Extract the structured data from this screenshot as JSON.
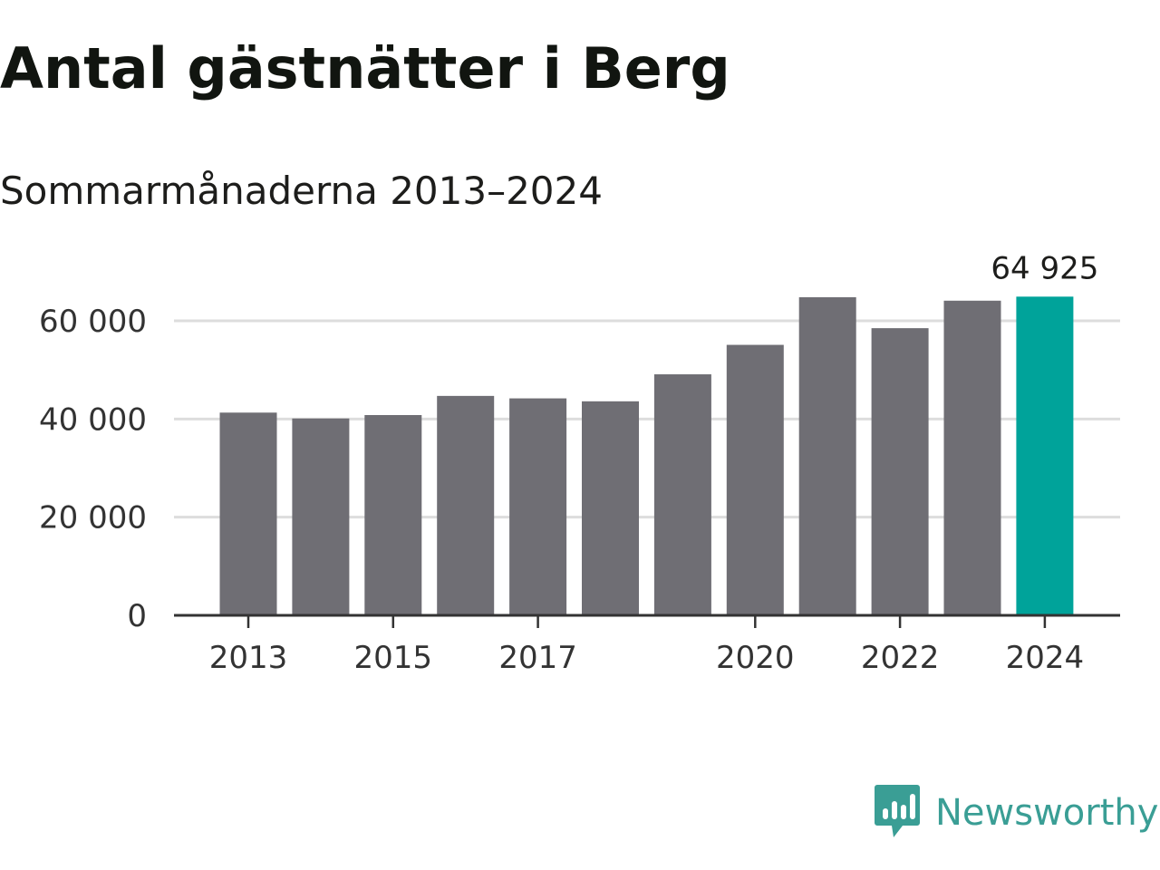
{
  "header": {
    "title": "Antal gästnätter i Berg",
    "subtitle": "Sommarmånaderna 2013–2024"
  },
  "brand": {
    "name": "Newsworthy",
    "color": "#3a9e95"
  },
  "colors": {
    "bar": "#6f6e74",
    "highlight": "#00a39a",
    "grid": "#dddddd",
    "axis": "#333333"
  },
  "chart_data": {
    "type": "bar",
    "title": "Antal gästnätter i Berg",
    "subtitle": "Sommarmånaderna 2013–2024",
    "xlabel": "",
    "ylabel": "",
    "categories": [
      "2013",
      "2014",
      "2015",
      "2016",
      "2017",
      "2018",
      "2019",
      "2020",
      "2021",
      "2022",
      "2023",
      "2024"
    ],
    "values": [
      41300,
      40100,
      40800,
      44700,
      44200,
      43600,
      49100,
      55100,
      64800,
      58500,
      64100,
      64925
    ],
    "x_tick_labels": [
      "2013",
      "2015",
      "2017",
      "2020",
      "2022",
      "2024"
    ],
    "y_ticks": [
      0,
      20000,
      40000,
      60000
    ],
    "y_tick_labels": [
      "0",
      "20 000",
      "40 000",
      "60 000"
    ],
    "ylim": [
      0,
      66000
    ],
    "grid": true,
    "highlight": {
      "category": "2024",
      "label": "64 925"
    }
  }
}
